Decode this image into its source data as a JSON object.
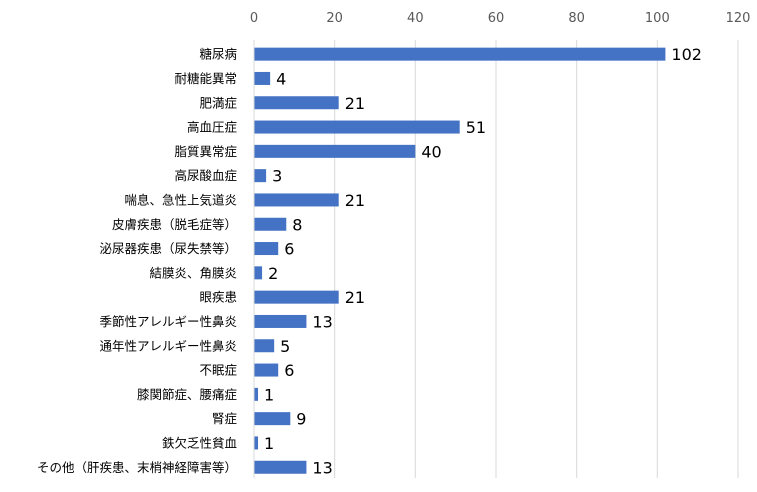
{
  "chart_data": {
    "type": "bar",
    "orientation": "horizontal",
    "title": "",
    "xlabel": "",
    "ylabel": "",
    "xlim": [
      0,
      120
    ],
    "x_ticks": [
      0,
      20,
      40,
      60,
      80,
      100,
      120
    ],
    "x_axis_position": "top",
    "grid": true,
    "legend": "none",
    "bar_color": "#4472C4",
    "grid_color": "#D9D9D9",
    "categories": [
      "糖尿病",
      "耐糖能異常",
      "肥満症",
      "高血圧症",
      "脂質異常症",
      "高尿酸血症",
      "喘息、急性上気道炎",
      "皮膚疾患（脱毛症等）",
      "泌尿器疾患（尿失禁等）",
      "結膜炎、角膜炎",
      "眼疾患",
      "季節性アレルギー性鼻炎",
      "通年性アレルギー性鼻炎",
      "不眠症",
      "膝関節症、腰痛症",
      "腎症",
      "鉄欠乏性貧血",
      "その他（肝疾患、末梢神経障害等）"
    ],
    "values": [
      102,
      4,
      21,
      51,
      40,
      3,
      21,
      8,
      6,
      2,
      21,
      13,
      5,
      6,
      1,
      9,
      1,
      13
    ]
  }
}
